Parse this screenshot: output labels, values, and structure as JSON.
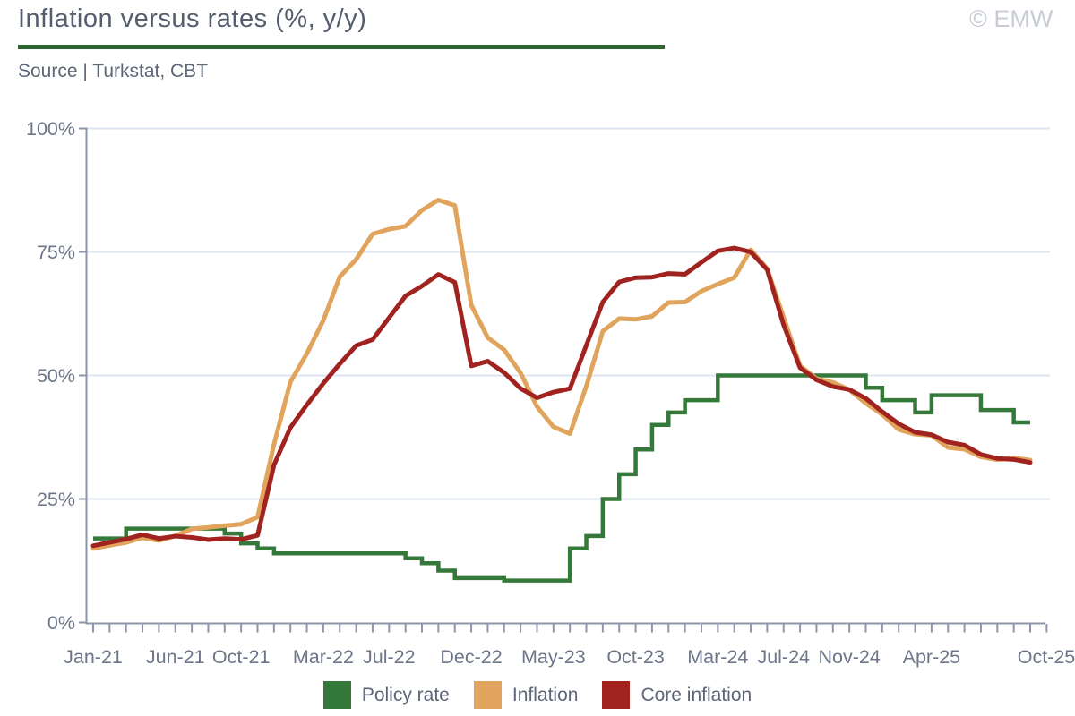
{
  "header": {
    "title": "Inflation versus rates (%, y/y)",
    "source": "Source | Turkstat, CBT",
    "watermark": "© EMW"
  },
  "colors": {
    "policy_rate": "#35793a",
    "inflation": "#e0a45c",
    "core_inflation": "#a02320",
    "title_rule": "#2b672e",
    "grid": "#dee5f0",
    "axis": "#8d96a9",
    "tick_label": "#6d7689"
  },
  "legend": [
    {
      "label": "Policy rate",
      "color": "#35793a"
    },
    {
      "label": "Inflation",
      "color": "#e0a45c"
    },
    {
      "label": "Core inflation",
      "color": "#a02320"
    }
  ],
  "chart_data": {
    "type": "line",
    "title": "Inflation versus rates (%, y/y)",
    "xlabel": "",
    "ylabel": "",
    "ylim": [
      0,
      100
    ],
    "yticks": [
      {
        "value": 0,
        "label": "0%"
      },
      {
        "value": 25,
        "label": "25%"
      },
      {
        "value": 50,
        "label": "50%"
      },
      {
        "value": 75,
        "label": "75%"
      },
      {
        "value": 100,
        "label": "100%"
      }
    ],
    "grid": "horizontal",
    "legend_position": "bottom",
    "months": [
      "Jan-21",
      "Feb-21",
      "Mar-21",
      "Apr-21",
      "May-21",
      "Jun-21",
      "Jul-21",
      "Aug-21",
      "Sep-21",
      "Oct-21",
      "Nov-21",
      "Dec-21",
      "Jan-22",
      "Feb-22",
      "Mar-22",
      "Apr-22",
      "May-22",
      "Jun-22",
      "Jul-22",
      "Aug-22",
      "Sep-22",
      "Oct-22",
      "Nov-22",
      "Dec-22",
      "Jan-23",
      "Feb-23",
      "Mar-23",
      "Apr-23",
      "May-23",
      "Jun-23",
      "Jul-23",
      "Aug-23",
      "Sep-23",
      "Oct-23",
      "Nov-23",
      "Dec-23",
      "Jan-24",
      "Feb-24",
      "Mar-24",
      "Apr-24",
      "May-24",
      "Jun-24",
      "Jul-24",
      "Aug-24",
      "Sep-24",
      "Oct-24",
      "Nov-24",
      "Dec-24",
      "Jan-25",
      "Feb-25",
      "Mar-25",
      "Apr-25",
      "May-25",
      "Jun-25",
      "Jul-25",
      "Aug-25",
      "Sep-25",
      "Oct-25"
    ],
    "xtick_labels": [
      "Jan-21",
      "Jun-21",
      "Oct-21",
      "Mar-22",
      "Jul-22",
      "Dec-22",
      "May-23",
      "Oct-23",
      "Mar-24",
      "Jul-24",
      "Nov-24",
      "Apr-25",
      "Oct-25"
    ],
    "xtick_months": [
      0,
      5,
      9,
      14,
      18,
      23,
      28,
      33,
      38,
      42,
      46,
      51,
      57
    ],
    "series": [
      {
        "name": "Policy rate",
        "style": "step",
        "color": "#35793a",
        "values": [
          17,
          17,
          19,
          19,
          19,
          19,
          19,
          19,
          18,
          16,
          15,
          14,
          14,
          14,
          14,
          14,
          14,
          14,
          14,
          13,
          12,
          10.5,
          9,
          9,
          9,
          8.5,
          8.5,
          8.5,
          8.5,
          15,
          17.5,
          25,
          30,
          35,
          40,
          42.5,
          45,
          45,
          50,
          50,
          50,
          50,
          50,
          50,
          50,
          50,
          50,
          47.5,
          45,
          45,
          42.5,
          46,
          46,
          46,
          43,
          43,
          40.5,
          40.5
        ]
      },
      {
        "name": "Inflation",
        "style": "line",
        "color": "#e0a45c",
        "values": [
          14.97,
          15.61,
          16.19,
          17.14,
          16.59,
          17.53,
          18.95,
          19.25,
          19.58,
          19.89,
          21.31,
          36.08,
          48.69,
          54.44,
          61.14,
          69.97,
          73.5,
          78.62,
          79.6,
          80.21,
          83.45,
          85.51,
          84.39,
          64.27,
          57.68,
          55.18,
          50.51,
          43.68,
          39.59,
          38.21,
          47.83,
          58.94,
          61.53,
          61.36,
          61.98,
          64.77,
          64.86,
          67.07,
          68.5,
          69.8,
          75.45,
          71.6,
          61.78,
          51.97,
          49.38,
          48.58,
          47.09,
          44.38,
          42.12,
          39.05,
          38.1,
          37.86,
          35.41,
          35.05,
          33.52,
          32.95,
          33.29,
          32.87
        ]
      },
      {
        "name": "Core inflation",
        "style": "line",
        "color": "#a02320",
        "values": [
          15.53,
          16.21,
          16.88,
          17.77,
          16.99,
          17.47,
          17.22,
          16.76,
          16.98,
          16.82,
          17.62,
          31.88,
          39.45,
          44.05,
          48.39,
          52.35,
          56.04,
          57.26,
          61.69,
          66.09,
          68.09,
          70.45,
          68.86,
          51.93,
          52.89,
          50.58,
          47.36,
          45.48,
          46.62,
          47.33,
          56.09,
          64.86,
          68.93,
          69.8,
          69.89,
          70.64,
          70.48,
          72.89,
          75.21,
          75.81,
          74.98,
          71.41,
          60.23,
          51.56,
          49.1,
          47.75,
          47.13,
          45.34,
          42.65,
          40.21,
          38.5,
          38,
          36.5,
          35.9,
          34,
          33.2,
          33,
          32.4
        ]
      }
    ]
  }
}
